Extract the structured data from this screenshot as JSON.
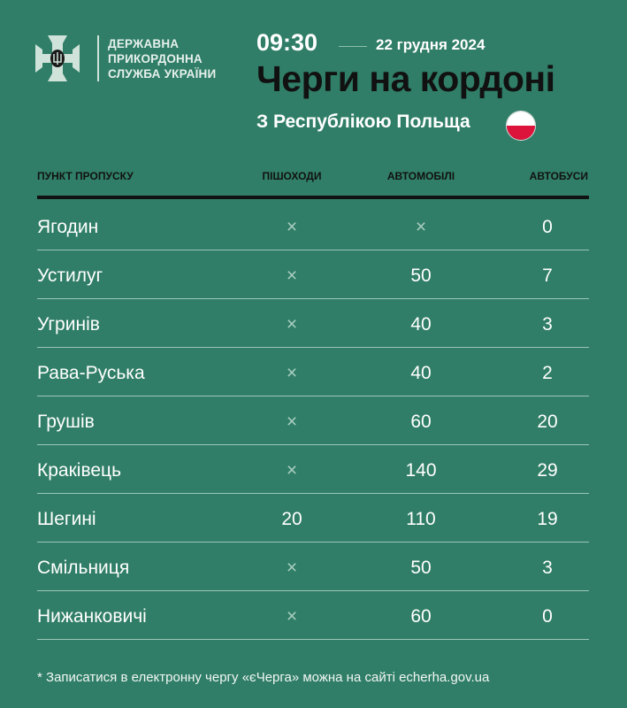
{
  "header": {
    "org": [
      "ДЕРЖАВНА",
      "ПРИКОРДОННА",
      "СЛУЖБА УКРАЇНИ"
    ],
    "time": "09:30",
    "date": "22 грудня 2024",
    "title": "Черги на кордоні",
    "subtitle": "З Республікою Польща",
    "flag_colors": [
      "#ffffff",
      "#dc143c"
    ]
  },
  "table": {
    "columns": [
      "ПУНКТ ПРОПУСКУ",
      "ПІШОХОДИ",
      "АВТОМОБІЛІ",
      "АВТОБУСИ"
    ],
    "rows": [
      [
        "Ягодин",
        "×",
        "×",
        "0"
      ],
      [
        "Устилуг",
        "×",
        "50",
        "7"
      ],
      [
        "Угринів",
        "×",
        "40",
        "3"
      ],
      [
        "Рава-Руська",
        "×",
        "40",
        "2"
      ],
      [
        "Грушів",
        "×",
        "60",
        "20"
      ],
      [
        "Краківець",
        "×",
        "140",
        "29"
      ],
      [
        "Шегині",
        "20",
        "110",
        "19"
      ],
      [
        "Смільниця",
        "×",
        "50",
        "3"
      ],
      [
        "Нижанковичі",
        "×",
        "60",
        "0"
      ]
    ]
  },
  "footnote": "* Записатися в електронну чергу «єЧерга» можна на сайті echerha.gov.ua",
  "colors": {
    "background": "#307e67",
    "title": "#111111"
  }
}
